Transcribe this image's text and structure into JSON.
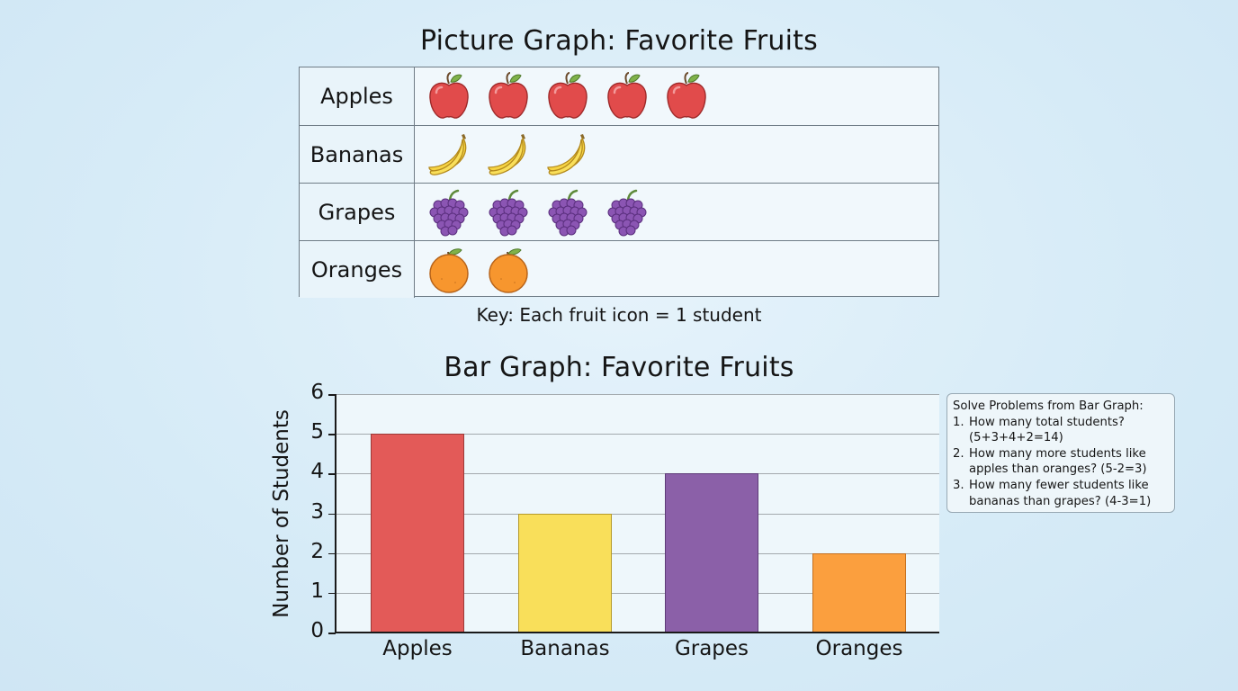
{
  "picture_graph": {
    "title": "Picture Graph: Favorite Fruits",
    "rows": [
      {
        "label": "Apples",
        "count": 5,
        "icon": "apple-icon"
      },
      {
        "label": "Bananas",
        "count": 3,
        "icon": "banana-icon"
      },
      {
        "label": "Grapes",
        "count": 4,
        "icon": "grapes-icon"
      },
      {
        "label": "Oranges",
        "count": 2,
        "icon": "orange-icon"
      }
    ],
    "key": "Key: Each fruit icon = 1 student"
  },
  "bar_graph": {
    "title": "Bar Graph: Favorite Fruits",
    "ylabel": "Number of Students",
    "yticks": [
      "0",
      "1",
      "2",
      "3",
      "4",
      "5",
      "6"
    ],
    "categories": [
      "Apples",
      "Bananas",
      "Grapes",
      "Oranges"
    ]
  },
  "problems": {
    "heading": "Solve Problems from Bar Graph:",
    "items": [
      {
        "num": "1.",
        "text": "How many total students? (5+3+4+2=14)"
      },
      {
        "num": "2.",
        "text": "How many more students like apples than oranges? (5-2=3)"
      },
      {
        "num": "3.",
        "text": "How many fewer students like bananas than grapes? (4-3=1)"
      }
    ]
  },
  "colors": {
    "apples": "#e35a58",
    "bananas": "#f9df5a",
    "grapes": "#8b60a8",
    "oranges": "#fb9f3e",
    "background": "#d6ebf7"
  },
  "chart_data": [
    {
      "type": "table",
      "title": "Picture Graph: Favorite Fruits",
      "categories": [
        "Apples",
        "Bananas",
        "Grapes",
        "Oranges"
      ],
      "values": [
        5,
        3,
        4,
        2
      ],
      "annotations": [
        "Key: Each fruit icon = 1 student"
      ]
    },
    {
      "type": "bar",
      "title": "Bar Graph: Favorite Fruits",
      "categories": [
        "Apples",
        "Bananas",
        "Grapes",
        "Oranges"
      ],
      "values": [
        5,
        3,
        4,
        2
      ],
      "colors": [
        "#e35a58",
        "#f9df5a",
        "#8b60a8",
        "#fb9f3e"
      ],
      "xlabel": "",
      "ylabel": "Number of Students",
      "ylim": [
        0,
        6
      ],
      "yticks": [
        0,
        1,
        2,
        3,
        4,
        5,
        6
      ],
      "grid": true,
      "legend": "none",
      "annotations": [
        "Solve Problems from Bar Graph:",
        "1. How many total students? (5+3+4+2=14)",
        "2. How many more students like apples than oranges? (5-2=3)",
        "3. How many fewer students like bananas than grapes? (4-3=1)"
      ]
    }
  ]
}
